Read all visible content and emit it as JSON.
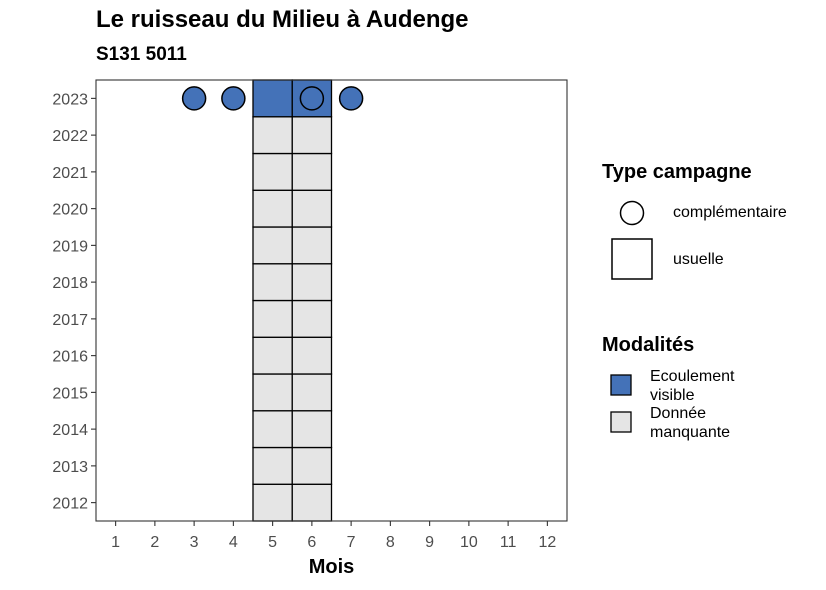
{
  "title": "Le ruisseau du Milieu à Audenge",
  "subtitle": "S131 5011",
  "legend": {
    "campaign_title": "Type campagne",
    "campaign_items": [
      "complémentaire",
      "usuelle"
    ],
    "modality_title": "Modalités",
    "modality_items": [
      "Ecoulement visible",
      "Donnée manquante"
    ]
  },
  "colors": {
    "Ecoulement visible": "#4472b8",
    "Donnée manquante": "#e5e5e5"
  },
  "chart_data": {
    "type": "heatmap",
    "xlabel": "Mois",
    "ylabel": "",
    "x_ticks": [
      1,
      2,
      3,
      4,
      5,
      6,
      7,
      8,
      9,
      10,
      11,
      12
    ],
    "y_ticks": [
      2012,
      2013,
      2014,
      2015,
      2016,
      2017,
      2018,
      2019,
      2020,
      2021,
      2022,
      2023
    ],
    "xlim": [
      0.5,
      12.5
    ],
    "ylim": [
      2011.5,
      2023.5
    ],
    "grid": false,
    "legend_position": "right",
    "usuelle_tiles": [
      {
        "year": 2012,
        "month": 5,
        "modality": "Donnée manquante"
      },
      {
        "year": 2012,
        "month": 6,
        "modality": "Donnée manquante"
      },
      {
        "year": 2013,
        "month": 5,
        "modality": "Donnée manquante"
      },
      {
        "year": 2013,
        "month": 6,
        "modality": "Donnée manquante"
      },
      {
        "year": 2014,
        "month": 5,
        "modality": "Donnée manquante"
      },
      {
        "year": 2014,
        "month": 6,
        "modality": "Donnée manquante"
      },
      {
        "year": 2015,
        "month": 5,
        "modality": "Donnée manquante"
      },
      {
        "year": 2015,
        "month": 6,
        "modality": "Donnée manquante"
      },
      {
        "year": 2016,
        "month": 5,
        "modality": "Donnée manquante"
      },
      {
        "year": 2016,
        "month": 6,
        "modality": "Donnée manquante"
      },
      {
        "year": 2017,
        "month": 5,
        "modality": "Donnée manquante"
      },
      {
        "year": 2017,
        "month": 6,
        "modality": "Donnée manquante"
      },
      {
        "year": 2018,
        "month": 5,
        "modality": "Donnée manquante"
      },
      {
        "year": 2018,
        "month": 6,
        "modality": "Donnée manquante"
      },
      {
        "year": 2019,
        "month": 5,
        "modality": "Donnée manquante"
      },
      {
        "year": 2019,
        "month": 6,
        "modality": "Donnée manquante"
      },
      {
        "year": 2020,
        "month": 5,
        "modality": "Donnée manquante"
      },
      {
        "year": 2020,
        "month": 6,
        "modality": "Donnée manquante"
      },
      {
        "year": 2021,
        "month": 5,
        "modality": "Donnée manquante"
      },
      {
        "year": 2021,
        "month": 6,
        "modality": "Donnée manquante"
      },
      {
        "year": 2022,
        "month": 5,
        "modality": "Donnée manquante"
      },
      {
        "year": 2022,
        "month": 6,
        "modality": "Donnée manquante"
      },
      {
        "year": 2023,
        "month": 5,
        "modality": "Ecoulement visible"
      },
      {
        "year": 2023,
        "month": 6,
        "modality": "Ecoulement visible"
      }
    ],
    "complementaire_points": [
      {
        "year": 2023,
        "month": 3,
        "modality": "Ecoulement visible"
      },
      {
        "year": 2023,
        "month": 4,
        "modality": "Ecoulement visible"
      },
      {
        "year": 2023,
        "month": 6,
        "modality": "Ecoulement visible"
      },
      {
        "year": 2023,
        "month": 7,
        "modality": "Ecoulement visible"
      }
    ]
  }
}
